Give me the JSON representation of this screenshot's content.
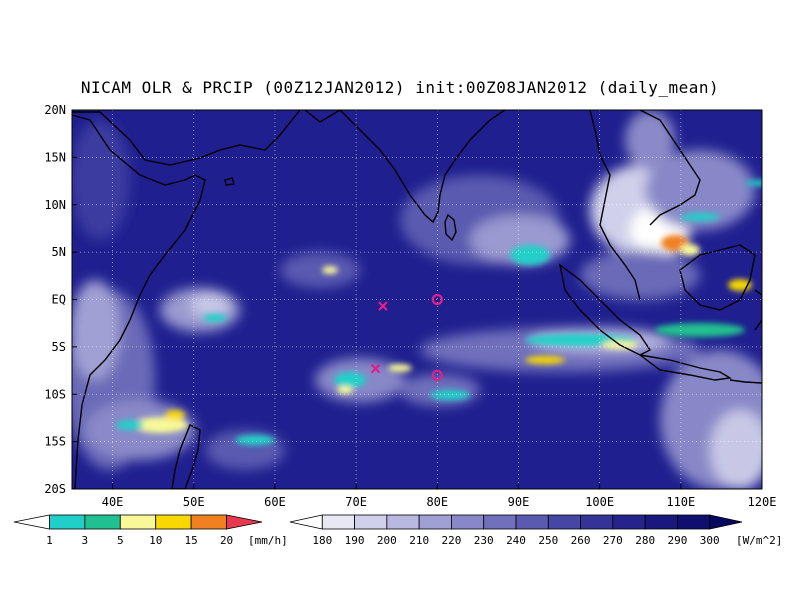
{
  "title": "NICAM OLR & PRCIP (00Z12JAN2012) init:00Z08JAN2012 (daily_mean)",
  "map": {
    "lon_range": [
      35,
      120
    ],
    "lat_range": [
      -20,
      20
    ],
    "x_ticks": [
      "40E",
      "50E",
      "60E",
      "70E",
      "80E",
      "90E",
      "100E",
      "110E",
      "120E"
    ],
    "x_tick_values": [
      40,
      50,
      60,
      70,
      80,
      90,
      100,
      110,
      120
    ],
    "y_ticks": [
      "20N",
      "15N",
      "10N",
      "5N",
      "EQ",
      "5S",
      "10S",
      "15S",
      "20S"
    ],
    "y_tick_values": [
      20,
      15,
      10,
      5,
      0,
      -5,
      -10,
      -15,
      -20
    ],
    "grid": "dotted",
    "ocean_color": "#1f1f8f",
    "markers": [
      {
        "type": "x",
        "lon": 73.3,
        "lat": -0.7,
        "color": "#e0208a"
      },
      {
        "type": "x",
        "lon": 72.4,
        "lat": -7.3,
        "color": "#e0208a"
      },
      {
        "type": "o",
        "lon": 80.0,
        "lat": 0.0,
        "color": "#e0208a"
      },
      {
        "type": "o",
        "lon": 80.0,
        "lat": -8.0,
        "color": "#e0208a"
      }
    ]
  },
  "precip_colorbar": {
    "labels": [
      "1",
      "3",
      "5",
      "10",
      "15",
      "20"
    ],
    "unit": "[mm/h]",
    "colors": [
      "#ffffff",
      "#20d0c8",
      "#20c090",
      "#f8f898",
      "#f8d800",
      "#f08020",
      "#e83850"
    ]
  },
  "olr_colorbar": {
    "labels": [
      "180",
      "190",
      "200",
      "210",
      "220",
      "230",
      "240",
      "250",
      "260",
      "270",
      "280",
      "290",
      "300"
    ],
    "unit": "[W/m^2]",
    "colors": [
      "#ffffff",
      "#e8e8f4",
      "#d0d0ea",
      "#b8b8e0",
      "#a0a0d4",
      "#8888c8",
      "#7070bc",
      "#5a5ab0",
      "#4646a4",
      "#343498",
      "#24248c",
      "#18187e",
      "#0f0f70",
      "#080860"
    ]
  }
}
